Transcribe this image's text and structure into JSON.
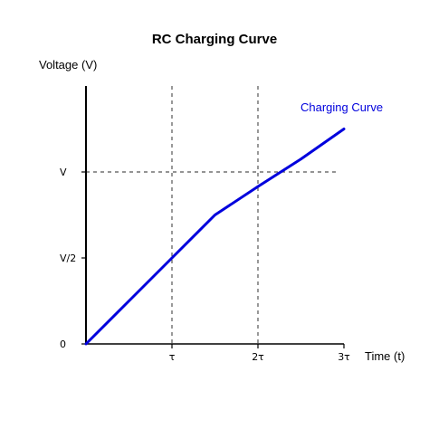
{
  "chart_data": {
    "type": "line",
    "title": "RC Charging Curve",
    "xlabel": "Time (t)",
    "ylabel": "Voltage (V)",
    "xlim": [
      0,
      3
    ],
    "ylim": [
      0,
      3
    ],
    "x_ticks": [
      {
        "value": 1,
        "label": "τ"
      },
      {
        "value": 2,
        "label": "2τ"
      },
      {
        "value": 3,
        "label": "3τ"
      }
    ],
    "y_ticks": [
      {
        "value": 0,
        "label": "0"
      },
      {
        "value": 1,
        "label": "V/2"
      },
      {
        "value": 2,
        "label": "V"
      }
    ],
    "grid": {
      "vertical_dashed_at": [
        1,
        2
      ],
      "horizontal_dashed_at": [
        2
      ]
    },
    "series": [
      {
        "name": "Charging Curve",
        "color": "#0000dd",
        "x": [
          0,
          0.5,
          1,
          1.5,
          2,
          2.5,
          3
        ],
        "y": [
          0,
          0.5,
          1,
          1.5,
          1.83,
          2.15,
          2.5
        ]
      }
    ]
  }
}
